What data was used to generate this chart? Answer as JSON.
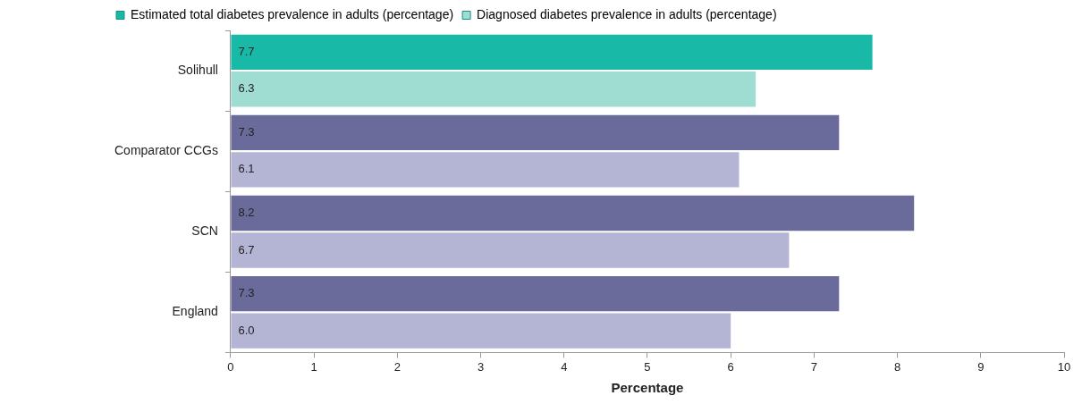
{
  "chart_data": {
    "type": "bar",
    "orientation": "horizontal",
    "categories": [
      "Solihull",
      "Comparator CCGs",
      "SCN",
      "England"
    ],
    "series": [
      {
        "name": "Estimated total diabetes prevalence in adults (percentage)",
        "color": "#19b9a8",
        "colors": [
          "#19b9a8",
          "#6b6b9b",
          "#6b6b9b",
          "#6b6b9b"
        ],
        "values": [
          7.7,
          7.3,
          8.2,
          7.3
        ],
        "value_labels": [
          "7.7",
          "7.3",
          "8.2",
          "7.3"
        ]
      },
      {
        "name": "Diagnosed diabetes prevalence in adults (percentage)",
        "color": "#9fdcd2",
        "colors": [
          "#9fdcd2",
          "#b4b4d4",
          "#b4b4d4",
          "#b4b4d4"
        ],
        "values": [
          6.3,
          6.1,
          6.7,
          6.0
        ],
        "value_labels": [
          "6.3",
          "6.1",
          "6.7",
          "6.0"
        ]
      }
    ],
    "xlim": [
      0,
      10
    ],
    "xticks": [
      0,
      1,
      2,
      3,
      4,
      5,
      6,
      7,
      8,
      9,
      10
    ],
    "xlabel": "Percentage",
    "grid": false,
    "legend": "top left"
  }
}
